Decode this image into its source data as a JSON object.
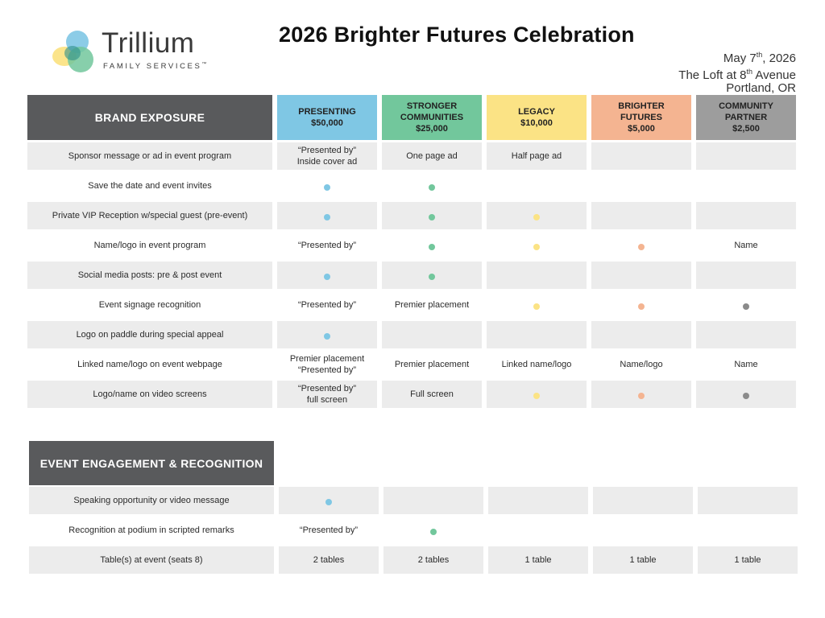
{
  "logo": {
    "name": "Trillium",
    "subtitle": "FAMILY SERVICES",
    "tm": "™"
  },
  "title": "2026 Brighter Futures Celebration",
  "event": {
    "date_prefix": "May 7",
    "date_sup": "th",
    "date_suffix": ", 2026",
    "venue_prefix": "The Loft at 8",
    "venue_sup": "th",
    "venue_suffix": " Avenue",
    "city": "Portland, OR"
  },
  "colors": {
    "presenting": "#7fc7e4",
    "stronger": "#72c79c",
    "legacy": "#fbe385",
    "brighter": "#f4b491",
    "community": "#9d9d9d",
    "section_header": "#595a5c"
  },
  "section1": {
    "title": "BRAND EXPOSURE",
    "tiers": [
      {
        "lines": [
          "PRESENTING",
          "$50,000"
        ],
        "color_class": "h-blue"
      },
      {
        "lines": [
          "STRONGER",
          "COMMUNITIES",
          "$25,000"
        ],
        "color_class": "h-green"
      },
      {
        "lines": [
          "LEGACY",
          "$10,000"
        ],
        "color_class": "h-yellow"
      },
      {
        "lines": [
          "BRIGHTER",
          "FUTURES",
          "$5,000"
        ],
        "color_class": "h-peach"
      },
      {
        "lines": [
          "COMMUNITY",
          "PARTNER",
          "$2,500"
        ],
        "color_class": "h-gray"
      }
    ],
    "rows": [
      {
        "label": "Sponsor message or ad in event program",
        "shade": true,
        "cells": [
          [
            "“Presented by”",
            "Inside cover ad"
          ],
          [
            "One page ad"
          ],
          [
            "Half page ad"
          ],
          [],
          []
        ]
      },
      {
        "label": "Save the date and event invites",
        "shade": false,
        "cells": [
          [
            "dot:blue"
          ],
          [
            "dot:green"
          ],
          [],
          [],
          []
        ]
      },
      {
        "label": "Private VIP Reception w/special guest (pre-event)",
        "shade": true,
        "cells": [
          [
            "dot:blue"
          ],
          [
            "dot:green"
          ],
          [
            "dot:yellow"
          ],
          [],
          []
        ]
      },
      {
        "label": "Name/logo in event program",
        "shade": false,
        "cells": [
          [
            "“Presented by”"
          ],
          [
            "dot:green"
          ],
          [
            "dot:yellow"
          ],
          [
            "dot:peach"
          ],
          [
            "Name"
          ]
        ]
      },
      {
        "label": "Social media posts: pre & post event",
        "shade": true,
        "cells": [
          [
            "dot:blue"
          ],
          [
            "dot:green"
          ],
          [],
          [],
          []
        ]
      },
      {
        "label": "Event signage recognition",
        "shade": false,
        "cells": [
          [
            "“Presented by”"
          ],
          [
            "Premier placement"
          ],
          [
            "dot:yellow"
          ],
          [
            "dot:peach"
          ],
          [
            "dot:gray"
          ]
        ]
      },
      {
        "label": "Logo on paddle during special appeal",
        "shade": true,
        "cells": [
          [
            "dot:blue"
          ],
          [],
          [],
          [],
          []
        ]
      },
      {
        "label": "Linked name/logo on event webpage",
        "shade": false,
        "cells": [
          [
            "Premier placement",
            "“Presented by”"
          ],
          [
            "Premier placement"
          ],
          [
            "Linked name/logo"
          ],
          [
            "Name/logo"
          ],
          [
            "Name"
          ]
        ]
      },
      {
        "label": "Logo/name on video screens",
        "shade": true,
        "cells": [
          [
            "“Presented by”",
            "full screen"
          ],
          [
            "Full screen"
          ],
          [
            "dot:yellow"
          ],
          [
            "dot:peach"
          ],
          [
            "dot:gray"
          ]
        ]
      }
    ]
  },
  "section2": {
    "title": "EVENT ENGAGEMENT & RECOGNITION",
    "rows": [
      {
        "label": "Speaking opportunity or video message",
        "shade": true,
        "cells": [
          [
            "dot:blue"
          ],
          [],
          [],
          [],
          []
        ]
      },
      {
        "label": "Recognition at podium in scripted remarks",
        "shade": false,
        "cells": [
          [
            "“Presented by”"
          ],
          [
            "dot:green"
          ],
          [],
          [],
          []
        ]
      },
      {
        "label": "Table(s) at event (seats 8)",
        "shade": true,
        "cells": [
          [
            "2 tables"
          ],
          [
            "2 tables"
          ],
          [
            "1 table"
          ],
          [
            "1 table"
          ],
          [
            "1 table"
          ]
        ]
      }
    ]
  }
}
